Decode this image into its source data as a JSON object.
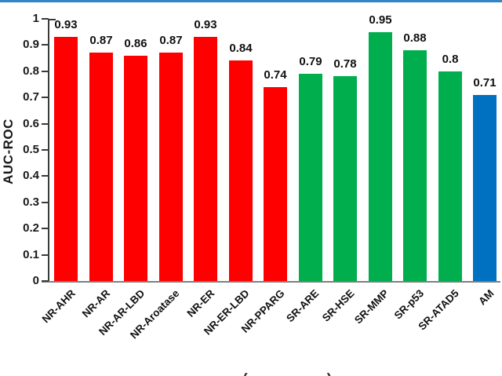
{
  "chart_data": {
    "type": "bar",
    "title": "",
    "xlabel": "",
    "ylabel": "AUC-ROC",
    "ylim": [
      0,
      1
    ],
    "ytick_step": 0.1,
    "grid": false,
    "legend": "none",
    "categories": [
      "NR-AHR",
      "NR-AR",
      "NR-AR-LBD",
      "NR-Aroatase",
      "NR-ER",
      "NR-ER-LBD",
      "NR-PPARG",
      "SR-ARE",
      "SR-HSE",
      "SR-MMP",
      "SR-p53",
      "SR-ATAD5",
      "AM"
    ],
    "values": [
      0.93,
      0.87,
      0.86,
      0.87,
      0.93,
      0.84,
      0.74,
      0.79,
      0.78,
      0.95,
      0.88,
      0.8,
      0.71
    ],
    "value_labels": [
      "0.93",
      "0.87",
      "0.86",
      "0.87",
      "0.93",
      "0.84",
      "0.74",
      "0.79",
      "0.78",
      "0.95",
      "0.88",
      "0.8",
      "0.71"
    ],
    "yticks": [
      "0",
      "0.1",
      "0.2",
      "0.3",
      "0.4",
      "0.5",
      "0.6",
      "0.7",
      "0.8",
      "0.9",
      "1"
    ],
    "bar_colors": [
      "#FF0000",
      "#FF0000",
      "#FF0000",
      "#FF0000",
      "#FF0000",
      "#FF0000",
      "#FF0000",
      "#00AE4E",
      "#00AE4E",
      "#00AE4E",
      "#00AE4E",
      "#00AE4E",
      "#0071C1"
    ],
    "group_colors": {
      "NR": "#FF0000",
      "SR": "#00AE4E",
      "AM": "#0071C1"
    }
  },
  "accents": {
    "top_rule_color": "#3585C6",
    "axis_color": "#3a3a3a",
    "baseline_color": "#7f7f7f",
    "text_color": "#1a1a1a"
  },
  "caption_fragment": {
    "left": "(",
    "right": ")"
  }
}
